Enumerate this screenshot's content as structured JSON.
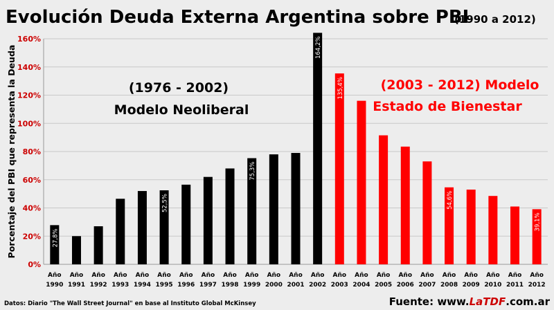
{
  "chart_data": {
    "type": "bar",
    "title": "Evolución Deuda Externa Argentina sobre PBI",
    "subtitle": "(1990 a 2012)",
    "ylabel": "Porcentaje del PBI que representa la Deuda",
    "ylim": [
      0,
      160
    ],
    "ytick_labels": [
      "0%",
      "20%",
      "40%",
      "60%",
      "80%",
      "100%",
      "120%",
      "140%",
      "160%"
    ],
    "grid": true,
    "x_prefix": "Año",
    "categories": [
      "1990",
      "1991",
      "1992",
      "1993",
      "1994",
      "1995",
      "1996",
      "1997",
      "1998",
      "1999",
      "2000",
      "2001",
      "2002",
      "2003",
      "2004",
      "2005",
      "2006",
      "2007",
      "2008",
      "2009",
      "2010",
      "2011",
      "2012"
    ],
    "values": [
      27.8,
      20,
      27,
      46.5,
      52,
      52.5,
      56.5,
      62,
      68,
      75.3,
      78,
      79,
      164.2,
      135.4,
      116,
      91.5,
      83.5,
      73,
      54.6,
      53,
      48.5,
      41,
      39.1
    ],
    "bar_labels": [
      "27,8%",
      "",
      "",
      "",
      "",
      "52,5%",
      "",
      "",
      "",
      "75,3%",
      "",
      "",
      "164,2%",
      "135,4%",
      "",
      "",
      "",
      "",
      "54,6%",
      "",
      "",
      "",
      "39,1%"
    ],
    "bar_colors": [
      "#000000",
      "#000000",
      "#000000",
      "#000000",
      "#000000",
      "#000000",
      "#000000",
      "#000000",
      "#000000",
      "#000000",
      "#000000",
      "#000000",
      "#000000",
      "#ff0000",
      "#ff0000",
      "#ff0000",
      "#ff0000",
      "#ff0000",
      "#ff0000",
      "#ff0000",
      "#ff0000",
      "#ff0000",
      "#ff0000"
    ],
    "annotations": {
      "neoliberal_line1": "(1976 - 2002)",
      "neoliberal_line2": "Modelo Neoliberal",
      "bienestar_line1": "(2003 - 2012) Modelo",
      "bienestar_line2": "Estado de Bienestar"
    },
    "colors": {
      "neoliberal": "#000000",
      "bienestar": "#ff0000",
      "background": "#ededed"
    }
  },
  "footer": {
    "source_note": "Datos: Diario \"The Wall Street Journal\" en base al Instituto Global McKinsey",
    "fuente_prefix": "Fuente: www.",
    "fuente_brand": "LaTDF",
    "fuente_suffix": ".com.ar"
  }
}
